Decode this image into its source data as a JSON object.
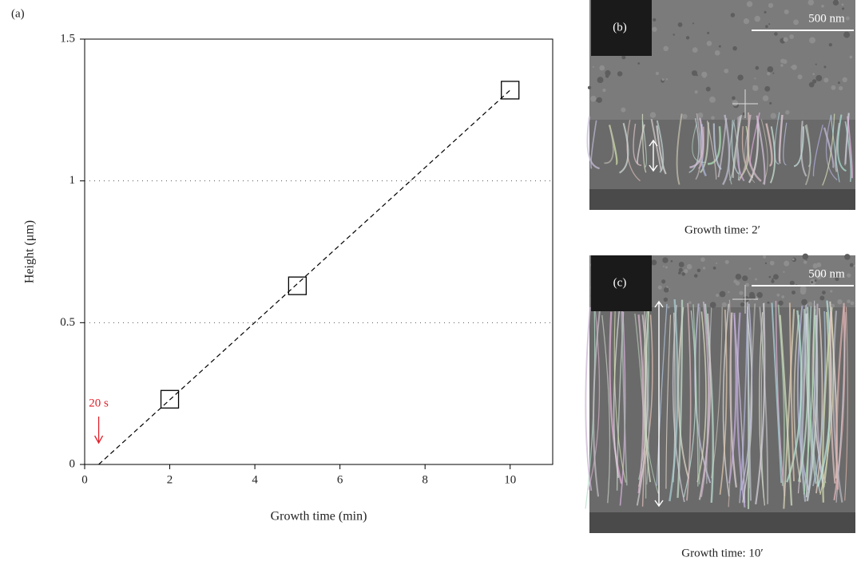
{
  "chart_data": {
    "type": "scatter",
    "x_label": "Growth time (min)",
    "y_label": "Height (μm)",
    "series": [
      {
        "x": [
          2,
          5,
          10
        ],
        "values": [
          0.23,
          0.63,
          1.32
        ],
        "color": "#000000",
        "marker": "square"
      }
    ],
    "fit_line": {
      "x": [
        0.33,
        10
      ],
      "values": [
        0,
        1.32
      ],
      "color": "#000000",
      "dash": true
    },
    "annotation": {
      "text": "20 s",
      "x": 0.33,
      "color": "#e0202a"
    },
    "xlim": [
      0,
      11
    ],
    "ylim": [
      0,
      1.5
    ],
    "xticks": [
      0,
      2,
      4,
      6,
      8,
      10
    ],
    "yticks": [
      0,
      0.5,
      1,
      1.5
    ],
    "grid": true
  },
  "figure": {
    "label": "(a)",
    "panels": [
      {
        "label": "(b)",
        "scale_bar": "500 nm",
        "caption": "Growth time: 2′"
      },
      {
        "label": "(c)",
        "scale_bar": "500 nm",
        "caption": "Growth time: 10′"
      }
    ]
  }
}
